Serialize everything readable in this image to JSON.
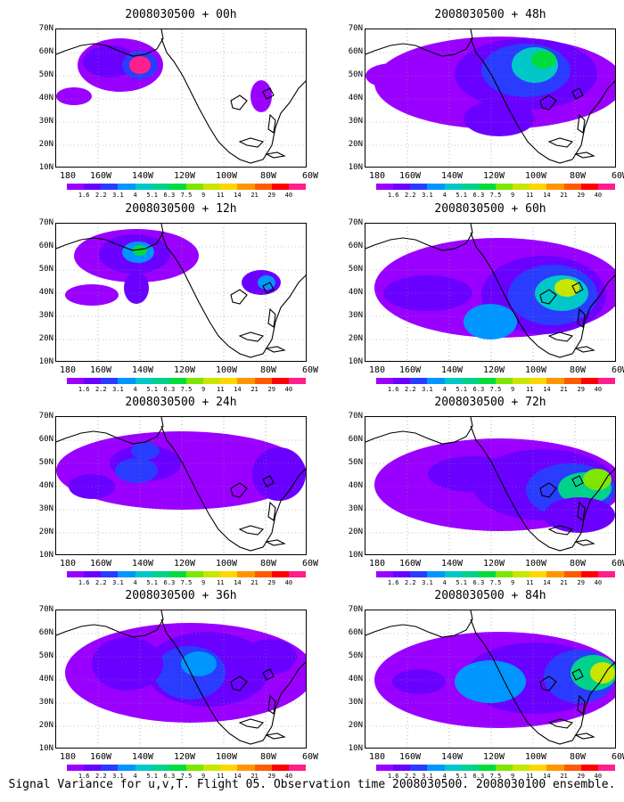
{
  "panels": [
    {
      "title": "2008030500 + 00h"
    },
    {
      "title": "2008030500 + 48h"
    },
    {
      "title": "2008030500 + 12h"
    },
    {
      "title": "2008030500 + 60h"
    },
    {
      "title": "2008030500 + 24h"
    },
    {
      "title": "2008030500 + 72h"
    },
    {
      "title": "2008030500 + 36h"
    },
    {
      "title": "2008030500 + 84h"
    }
  ],
  "axis": {
    "lat_labels": [
      "70N",
      "60N",
      "50N",
      "40N",
      "30N",
      "20N",
      "10N"
    ],
    "lon_labels": [
      "180",
      "160W",
      "140W",
      "120W",
      "100W",
      "80W",
      "60W"
    ]
  },
  "legend": {
    "labels": [
      "1.6",
      "2.2",
      "3.1",
      "4",
      "5.1",
      "6.3",
      "7.5",
      "9",
      "11",
      "14",
      "21",
      "29",
      "40"
    ],
    "colors": [
      "#9a00ff",
      "#6a00ff",
      "#2a3cff",
      "#0096ff",
      "#00c8c8",
      "#00d28c",
      "#00dc3c",
      "#7ee600",
      "#c8e600",
      "#ffd700",
      "#ff9600",
      "#ff5a00",
      "#ff0000",
      "#ff1e8c"
    ]
  },
  "footer": "Signal Variance for u,v,T. Flight 05. Observation time 2008030500. 2008030100 ensemble."
}
